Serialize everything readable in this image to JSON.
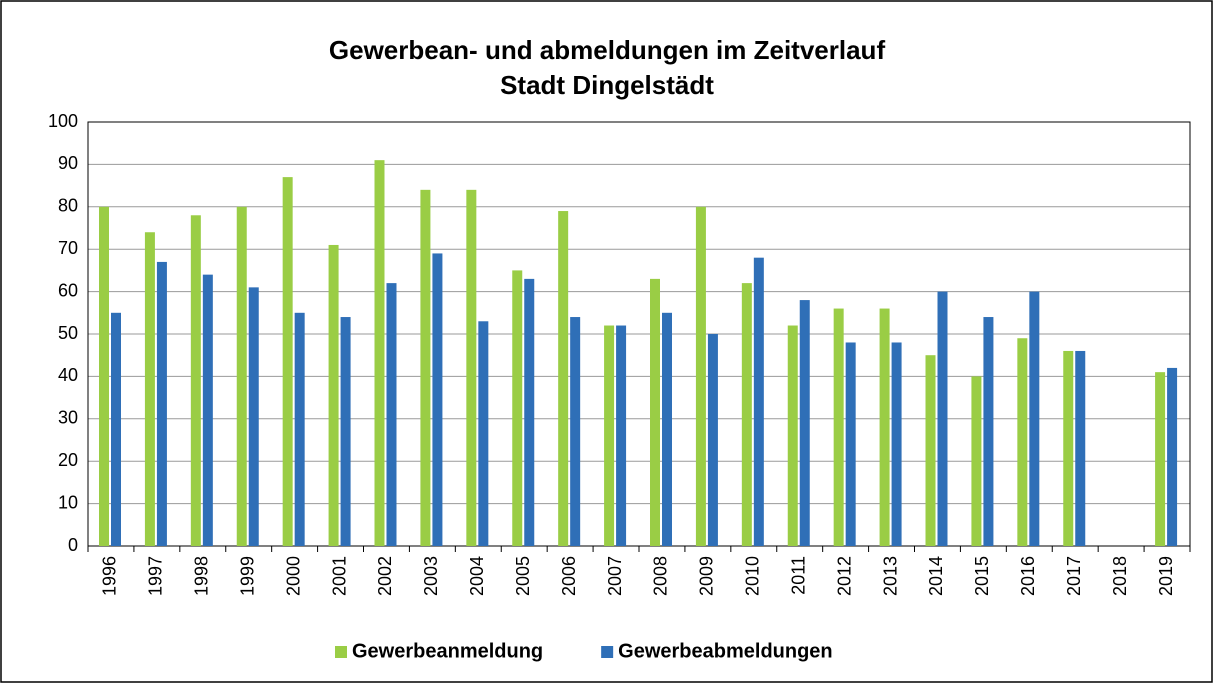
{
  "chart_data": {
    "type": "bar",
    "title": "Gewerbean- und abmeldungen im Zeitverlauf",
    "subtitle": "Stadt Dingelstädt",
    "categories": [
      "1996",
      "1997",
      "1998",
      "1999",
      "2000",
      "2001",
      "2002",
      "2003",
      "2004",
      "2005",
      "2006",
      "2007",
      "2008",
      "2009",
      "2010",
      "2011",
      "2012",
      "2013",
      "2014",
      "2015",
      "2016",
      "2017",
      "2018",
      "2019"
    ],
    "series": [
      {
        "name": "Gewerbeanmeldung",
        "color": "#9acd45",
        "values": [
          80,
          74,
          78,
          80,
          87,
          71,
          91,
          84,
          84,
          65,
          79,
          52,
          63,
          80,
          62,
          52,
          56,
          56,
          45,
          40,
          49,
          46,
          null,
          41
        ]
      },
      {
        "name": "Gewerbeabmeldungen",
        "color": "#2f6fb7",
        "values": [
          55,
          67,
          64,
          61,
          55,
          54,
          62,
          69,
          53,
          63,
          54,
          52,
          55,
          50,
          68,
          58,
          48,
          48,
          60,
          54,
          60,
          46,
          null,
          42
        ]
      }
    ],
    "ylim": [
      0,
      100
    ],
    "yticks": [
      0,
      10,
      20,
      30,
      40,
      50,
      60,
      70,
      80,
      90,
      100
    ],
    "grid": true,
    "legend": "bottom"
  }
}
